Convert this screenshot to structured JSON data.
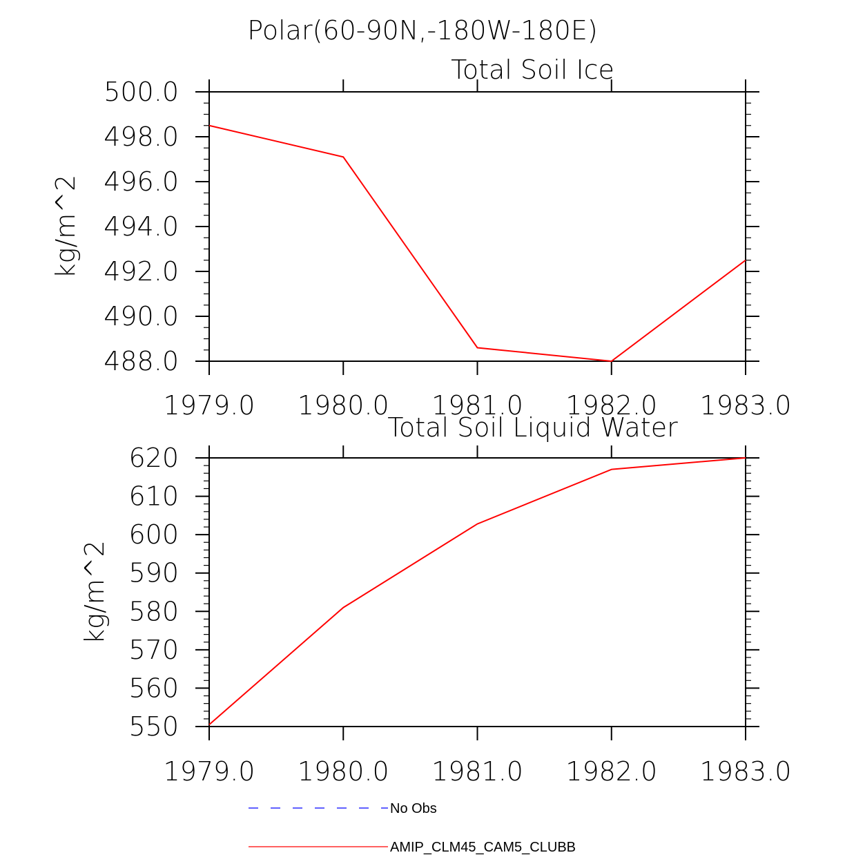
{
  "figure": {
    "main_title": "Polar(60-90N,-180W-180E)"
  },
  "chart_data": [
    {
      "type": "line",
      "title": "Total Soil Ice",
      "ylabel": "kg/m^2",
      "xlabel": "",
      "x": [
        1979.0,
        1980.0,
        1981.0,
        1982.0,
        1983.0
      ],
      "x_tick_labels": [
        "1979.0",
        "1980.0",
        "1981.0",
        "1982.0",
        "1983.0"
      ],
      "xlim": [
        1979.0,
        1983.0
      ],
      "ylim": [
        488.0,
        500.0
      ],
      "y_ticks": [
        488.0,
        490.0,
        492.0,
        494.0,
        496.0,
        498.0,
        500.0
      ],
      "y_tick_labels": [
        "488.0",
        "490.0",
        "492.0",
        "494.0",
        "496.0",
        "498.0",
        "500.0"
      ],
      "y_minor_step": 0.5,
      "series": [
        {
          "name": "AMIP_CLM45_CAM5_CLUBB",
          "color": "#ff0000",
          "values": [
            498.5,
            497.1,
            488.6,
            488.0,
            492.5
          ]
        }
      ]
    },
    {
      "type": "line",
      "title": "Total Soil Liquid Water",
      "ylabel": "kg/m^2",
      "xlabel": "",
      "x": [
        1979.0,
        1980.0,
        1981.0,
        1982.0,
        1983.0
      ],
      "x_tick_labels": [
        "1979.0",
        "1980.0",
        "1981.0",
        "1982.0",
        "1983.0"
      ],
      "xlim": [
        1979.0,
        1983.0
      ],
      "ylim": [
        550,
        620
      ],
      "y_ticks": [
        550,
        560,
        570,
        580,
        590,
        600,
        610,
        620
      ],
      "y_tick_labels": [
        "550",
        "560",
        "570",
        "580",
        "590",
        "600",
        "610",
        "620"
      ],
      "y_minor_step": 2,
      "series": [
        {
          "name": "AMIP_CLM45_CAM5_CLUBB",
          "color": "#ff0000",
          "values": [
            550.5,
            581.0,
            602.8,
            617.0,
            620.0
          ]
        }
      ]
    }
  ],
  "legend": {
    "entries": [
      {
        "label": "No Obs",
        "color": "#0000ff",
        "style": "dashed"
      },
      {
        "label": "AMIP_CLM45_CAM5_CLUBB",
        "color": "#ff0000",
        "style": "solid"
      }
    ]
  }
}
